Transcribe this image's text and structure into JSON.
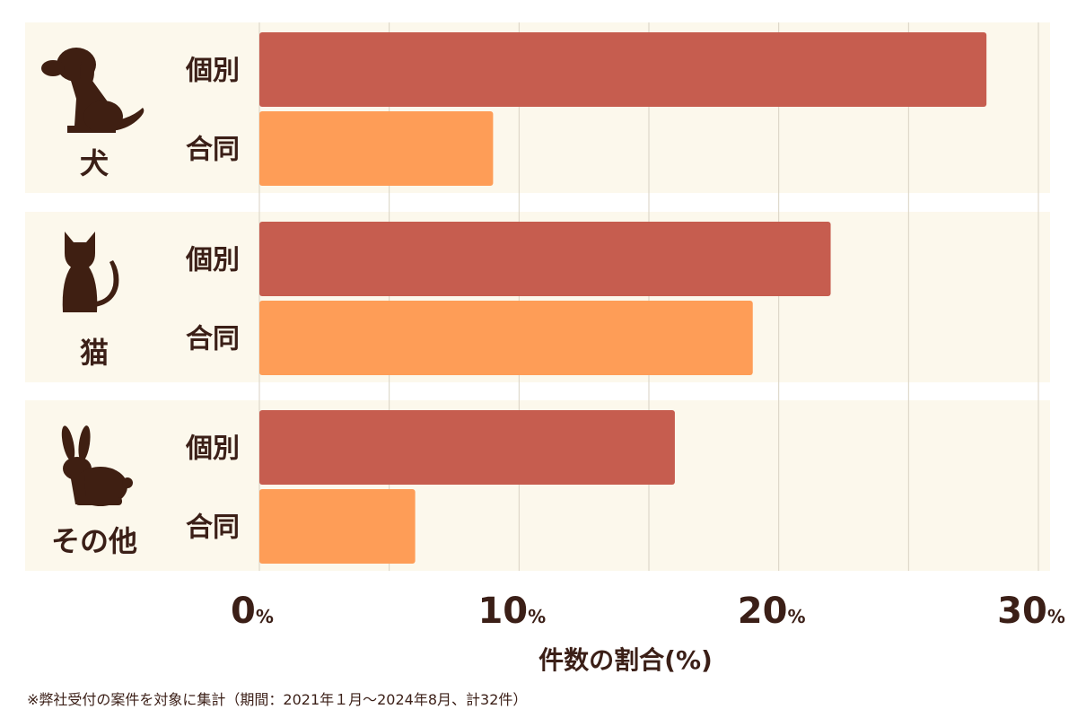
{
  "chart_data": {
    "type": "bar",
    "orientation": "horizontal",
    "xlabel": "件数の割合(%)",
    "x_ticks": [
      "0",
      "10",
      "20",
      "30"
    ],
    "tick_unit": "%",
    "xlim": [
      0,
      30
    ],
    "groups": [
      {
        "name": "犬",
        "icon": "dog-icon",
        "bars": [
          {
            "label": "個別",
            "value": 28.0
          },
          {
            "label": "合同",
            "value": 9.0
          }
        ]
      },
      {
        "name": "猫",
        "icon": "cat-icon",
        "bars": [
          {
            "label": "個別",
            "value": 22.0
          },
          {
            "label": "合同",
            "value": 19.0
          }
        ]
      },
      {
        "name": "その他",
        "icon": "rabbit-icon",
        "bars": [
          {
            "label": "個別",
            "value": 16.0
          },
          {
            "label": "合同",
            "value": 6.0
          }
        ]
      }
    ],
    "series_colors": {
      "個別": "#c65d4f",
      "合同": "#fe9d57"
    },
    "grid": true
  },
  "footnote": "※弊社受付の案件を対象に集計（期間：2021年１月～2024年8月、計32件）",
  "colors": {
    "panel_bg": "#fcf8ec",
    "text": "#3b1f17",
    "icon": "#3f1f12"
  }
}
